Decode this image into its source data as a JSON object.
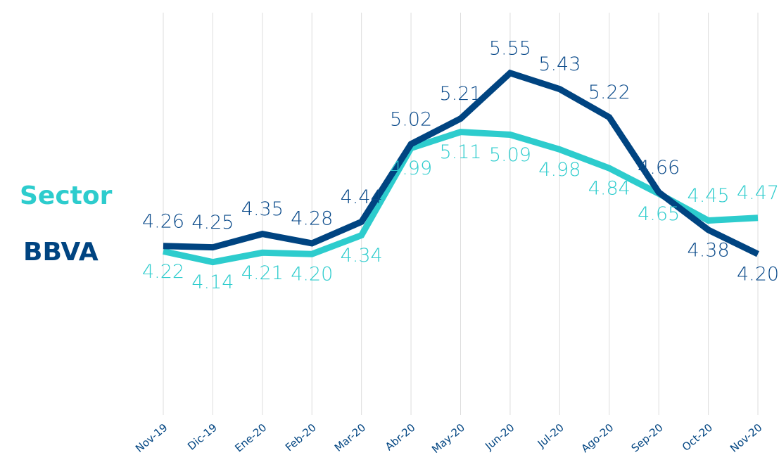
{
  "chart_data": {
    "type": "line",
    "categories": [
      "Nov-19",
      "Dic-19",
      "Ene-20",
      "Feb-20",
      "Mar-20",
      "Abr-20",
      "May-20",
      "Jun-20",
      "Jul-20",
      "Ago-20",
      "Sep-20",
      "Oct-20",
      "Nov-20"
    ],
    "series": [
      {
        "name": "Sector",
        "color": "#2dcccd",
        "values": [
          4.22,
          4.14,
          4.21,
          4.2,
          4.34,
          4.99,
          5.11,
          5.09,
          4.98,
          4.84,
          4.65,
          4.45,
          4.47
        ],
        "value_labels": [
          "4.22",
          "4.14",
          "4.21",
          "4.20",
          "4.34",
          "4.99",
          "5.11",
          "5.09",
          "4.98",
          "4.84",
          "4.65",
          "4.45",
          "4.47"
        ]
      },
      {
        "name": "BBVA",
        "color": "#004481",
        "values": [
          4.26,
          4.25,
          4.35,
          4.28,
          4.44,
          5.02,
          5.21,
          5.55,
          5.43,
          5.22,
          4.66,
          4.38,
          4.2
        ],
        "value_labels": [
          "4.26",
          "4.25",
          "4.35",
          "4.28",
          "4.44",
          "5.02",
          "5.21",
          "5.55",
          "5.43",
          "5.22",
          "4.66",
          "4.38",
          "4.20"
        ]
      }
    ],
    "ylim": [
      3,
      6
    ],
    "grid": true
  }
}
